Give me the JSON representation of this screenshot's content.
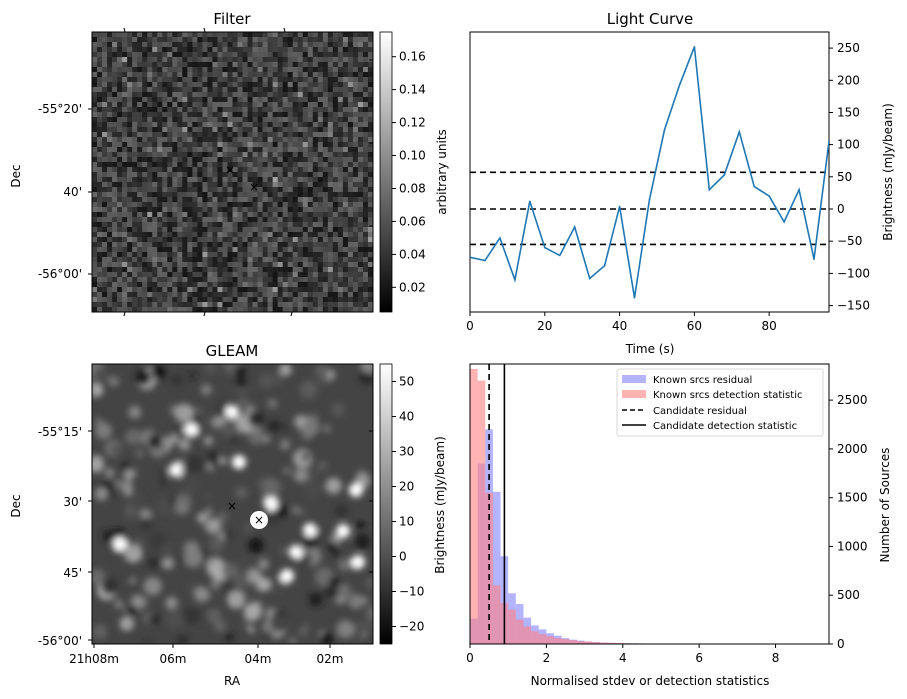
{
  "colors": {
    "line": "#1f77b4",
    "known_residual": "#8080ff",
    "known_detection": "#ff8080",
    "red_marker": "#ff0000",
    "blue_marker": "#0000cc"
  },
  "filter_panel": {
    "title": "Filter",
    "ylabel": "Dec",
    "yticks": [
      "-55°20'",
      "40'",
      "-56°00'"
    ],
    "colorbar_label": "arbitrary units",
    "colorbar_ticks": [
      "0.16",
      "0.14",
      "0.12",
      "0.10",
      "0.08",
      "0.06",
      "0.04",
      "0.02"
    ],
    "colorbar_range": [
      0.005,
      0.175
    ]
  },
  "gleam_panel": {
    "title": "GLEAM",
    "ylabel": "Dec",
    "xlabel": "RA",
    "yticks": [
      "-55°15'",
      "30'",
      "45'",
      "-56°00'"
    ],
    "xticks": [
      "21h08m",
      "06m",
      "04m",
      "02m"
    ],
    "colorbar_label": "Brightness (mJy/beam)",
    "colorbar_ticks": [
      "50",
      "40",
      "30",
      "20",
      "10",
      "0",
      "−10",
      "−20"
    ],
    "colorbar_range": [
      -25,
      55
    ]
  },
  "chart_data": [
    {
      "type": "line",
      "title": "Light Curve",
      "xlabel": "Time (s)",
      "ylabel": "Brightness (mJy/beam)",
      "xlim": [
        0,
        96
      ],
      "ylim": [
        -160,
        275
      ],
      "xticks": [
        "0",
        "20",
        "40",
        "60",
        "80"
      ],
      "yticks": [
        "250",
        "200",
        "150",
        "100",
        "50",
        "0",
        "−50",
        "−100",
        "−150"
      ],
      "x": [
        0,
        4,
        8,
        12,
        16,
        20,
        24,
        28,
        32,
        36,
        40,
        44,
        48,
        52,
        56,
        60,
        64,
        68,
        72,
        76,
        80,
        84,
        88,
        92,
        96
      ],
      "y": [
        -75,
        -80,
        -45,
        -110,
        12,
        -60,
        -72,
        -28,
        -108,
        -88,
        4,
        -138,
        15,
        123,
        192,
        252,
        30,
        53,
        120,
        35,
        20,
        -20,
        30,
        -78,
        105
      ],
      "hlines": [
        57,
        0,
        -55
      ]
    },
    {
      "type": "bar",
      "xlabel": "Normalised stdev or detection statistics",
      "ylabel": "Number of Sources",
      "xlim": [
        0,
        9.4
      ],
      "ylim": [
        0,
        2870
      ],
      "xticks": [
        "0",
        "2",
        "4",
        "6",
        "8"
      ],
      "yticks": [
        "2500",
        "2000",
        "1500",
        "1000",
        "500",
        "0"
      ],
      "bin_start": 0,
      "bin_width": 0.2,
      "series": [
        {
          "name": "Known srcs residual",
          "values": [
            260,
            1850,
            2200,
            1560,
            900,
            520,
            410,
            270,
            190,
            150,
            110,
            85,
            60,
            45,
            35,
            25,
            20,
            15,
            12,
            10,
            8,
            7,
            6,
            5,
            5,
            4,
            4,
            3,
            3,
            3,
            2,
            2,
            2,
            2,
            1,
            1,
            1,
            1,
            1,
            1,
            1,
            1,
            1,
            1,
            1,
            1
          ]
        },
        {
          "name": "Known srcs detection statistic",
          "values": [
            2820,
            2700,
            1550,
            600,
            420,
            350,
            250,
            180,
            130,
            100,
            80,
            60,
            50,
            40,
            30,
            25,
            20,
            15,
            12,
            10,
            8,
            6,
            5,
            4,
            3,
            3,
            2,
            2,
            2,
            1,
            1,
            1,
            1,
            1,
            1,
            1,
            1,
            1,
            1,
            1,
            1,
            1,
            1,
            1,
            1,
            1
          ]
        }
      ],
      "vlines": [
        {
          "name": "Candidate residual",
          "x": 0.5,
          "style": "dashed"
        },
        {
          "name": "Candidate detection statistic",
          "x": 0.9,
          "style": "solid"
        }
      ]
    }
  ]
}
